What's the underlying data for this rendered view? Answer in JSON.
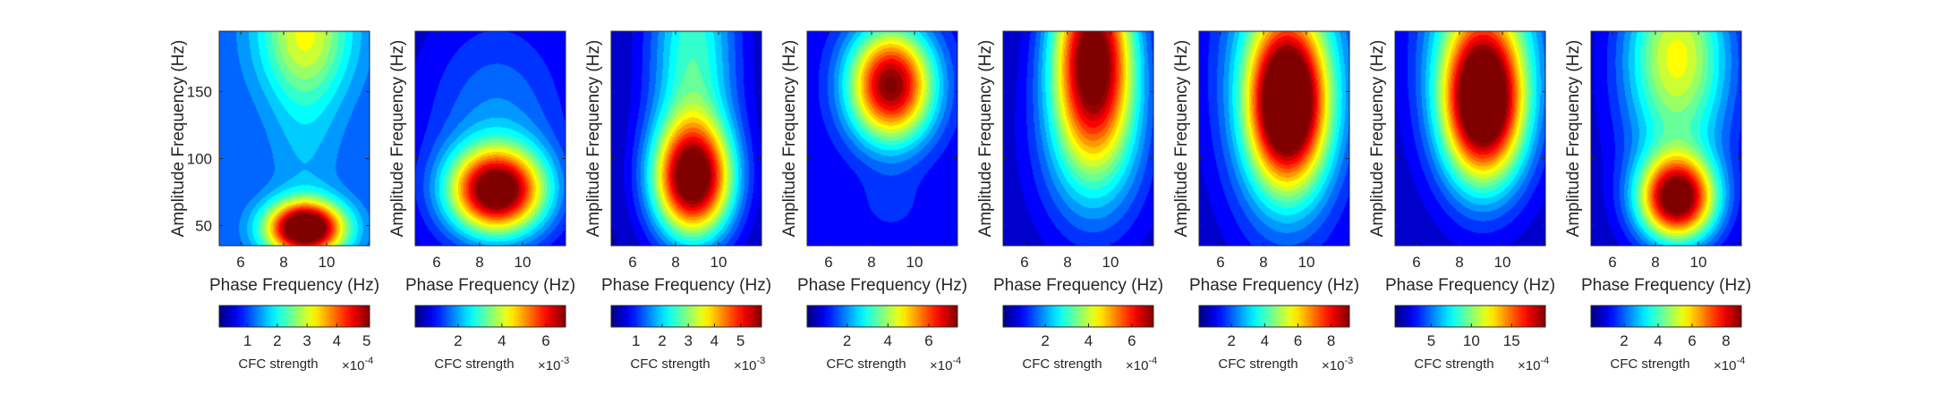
{
  "chart_data": {
    "type": "heatmap",
    "colormap": "jet",
    "xlabel": "Phase Frequency (Hz)",
    "ylabel": "Amplitude Frequency (Hz)",
    "xlim": [
      5,
      12
    ],
    "ylim": [
      35,
      195
    ],
    "xticks": [
      6,
      8,
      10
    ],
    "yticks": [
      50,
      100,
      150
    ],
    "colorbar_label": "CFC strength",
    "panels": [
      {
        "colorbar": {
          "exponent": "-4",
          "ticks": [
            1,
            2,
            3,
            4,
            5
          ],
          "range": [
            0.05,
            5.1
          ]
        },
        "field": {
          "bg": 0.2,
          "blobs": [
            {
              "x": 9.0,
              "y": 48,
              "sx": 1.25,
              "sy": 14,
              "a": 1.0
            },
            {
              "x": 9.0,
              "y": 195,
              "sx": 1.6,
              "sy": 35,
              "a": 0.36
            },
            {
              "x": 9.0,
              "y": 125,
              "sx": 1.2,
              "sy": 65,
              "a": 0.1
            }
          ]
        }
      },
      {
        "colorbar": {
          "exponent": "-3",
          "ticks": [
            2,
            4,
            6
          ],
          "range": [
            0.05,
            6.9
          ]
        },
        "field": {
          "bg": 0.06,
          "blobs": [
            {
              "x": 8.8,
              "y": 76,
              "sx": 1.55,
              "sy": 22,
              "a": 0.94
            },
            {
              "x": 8.8,
              "y": 120,
              "sx": 2.4,
              "sy": 60,
              "a": 0.2
            }
          ]
        }
      },
      {
        "colorbar": {
          "exponent": "-3",
          "ticks": [
            1,
            2,
            3,
            4,
            5
          ],
          "range": [
            0.05,
            5.8
          ]
        },
        "field": {
          "bg": 0.04,
          "blobs": [
            {
              "x": 8.8,
              "y": 84,
              "sx": 1.3,
              "sy": 30,
              "a": 0.95
            },
            {
              "x": 8.8,
              "y": 175,
              "sx": 1.45,
              "sy": 70,
              "a": 0.4
            }
          ]
        }
      },
      {
        "colorbar": {
          "exponent": "-4",
          "ticks": [
            2,
            4,
            6
          ],
          "range": [
            0.05,
            7.4
          ]
        },
        "field": {
          "bg": 0.1,
          "blobs": [
            {
              "x": 8.9,
              "y": 155,
              "sx": 1.4,
              "sy": 30,
              "a": 0.92
            },
            {
              "x": 8.9,
              "y": 65,
              "sx": 1.2,
              "sy": 18,
              "a": 0.06
            }
          ]
        }
      },
      {
        "colorbar": {
          "exponent": "-4",
          "ticks": [
            2,
            4,
            6
          ],
          "range": [
            0.05,
            7.0
          ]
        },
        "field": {
          "bg": 0.04,
          "blobs": [
            {
              "x": 9.2,
              "y": 175,
              "sx": 1.35,
              "sy": 55,
              "a": 1.0
            },
            {
              "x": 9.2,
              "y": 105,
              "sx": 2.2,
              "sy": 55,
              "a": 0.18
            }
          ]
        }
      },
      {
        "colorbar": {
          "exponent": "-3",
          "ticks": [
            2,
            4,
            6,
            8
          ],
          "range": [
            0.05,
            9.1
          ]
        },
        "field": {
          "bg": 0.04,
          "blobs": [
            {
              "x": 9.1,
              "y": 140,
              "sx": 1.25,
              "sy": 42,
              "a": 0.98
            },
            {
              "x": 9.1,
              "y": 170,
              "sx": 2.3,
              "sy": 90,
              "a": 0.36
            }
          ]
        }
      },
      {
        "colorbar": {
          "exponent": "-4",
          "ticks": [
            5,
            10,
            15
          ],
          "range": [
            0.5,
            19.2
          ]
        },
        "field": {
          "bg": 0.05,
          "blobs": [
            {
              "x": 9.1,
              "y": 140,
              "sx": 1.3,
              "sy": 40,
              "a": 0.95
            },
            {
              "x": 9.1,
              "y": 190,
              "sx": 2.0,
              "sy": 70,
              "a": 0.4
            }
          ]
        }
      },
      {
        "colorbar": {
          "exponent": "-4",
          "ticks": [
            2,
            4,
            6,
            8
          ],
          "range": [
            0.05,
            8.9
          ]
        },
        "field": {
          "bg": 0.05,
          "blobs": [
            {
              "x": 9.0,
              "y": 70,
              "sx": 1.25,
              "sy": 22,
              "a": 0.95
            },
            {
              "x": 9.0,
              "y": 185,
              "sx": 1.7,
              "sy": 45,
              "a": 0.45
            },
            {
              "x": 9.0,
              "y": 125,
              "sx": 1.9,
              "sy": 55,
              "a": 0.2
            }
          ]
        }
      }
    ]
  }
}
